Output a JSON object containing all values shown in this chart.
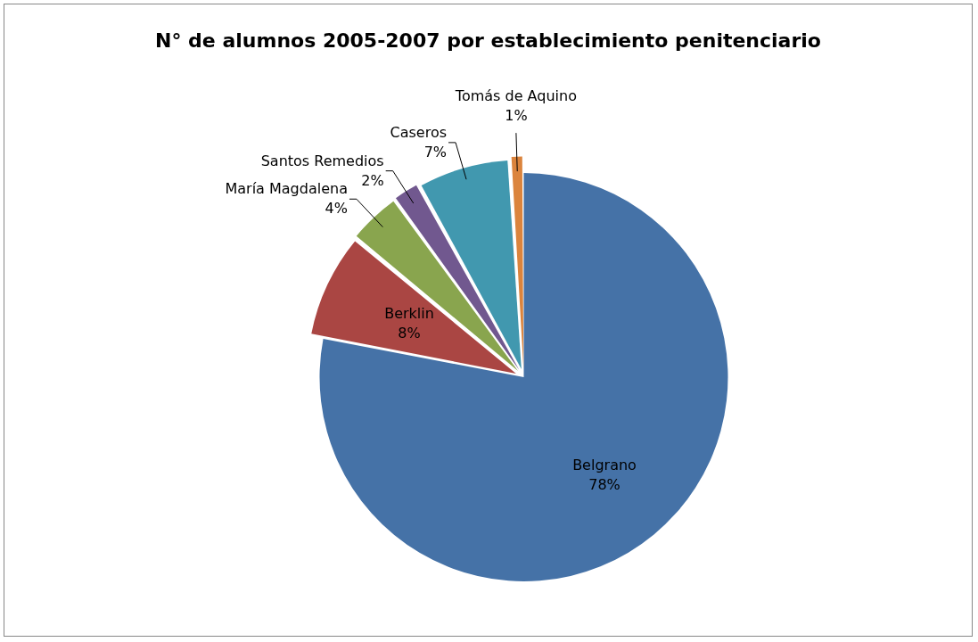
{
  "chart_data": {
    "type": "pie",
    "title": "N° de alumnos 2005-2007 por establecimiento penitenciario",
    "categories": [
      "Belgrano",
      "Berklin",
      "María Magdalena",
      "Santos Remedios",
      "Caseros",
      "Tomás de Aquino"
    ],
    "values": [
      78,
      8,
      4,
      2,
      7,
      1
    ],
    "colors": [
      "#4572a7",
      "#aa4643",
      "#89a54e",
      "#71588f",
      "#4198af",
      "#db843d"
    ],
    "value_labels": [
      "78%",
      "8%",
      "4%",
      "2%",
      "7%",
      "1%"
    ],
    "legend": false
  }
}
